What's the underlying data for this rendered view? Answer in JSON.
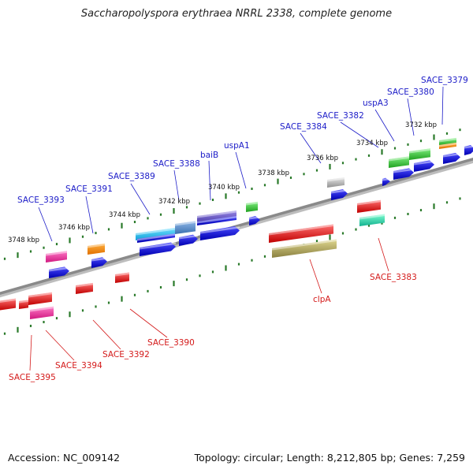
{
  "title": "Saccharopolyspora erythraea NRRL 2338, complete genome",
  "footer": {
    "accession": "Accession: NC_009142",
    "summary": "Topology: circular; Length: 8,212,805 bp; Genes: 7,259"
  },
  "colors": {
    "backbone": "#8a8a8a",
    "forward_label": "#1c1cc8",
    "reverse_label": "#d41a1a",
    "tick": "#2a7a2a"
  },
  "kbp_ticks": [
    "3748 kbp",
    "3746 kbp",
    "3744 kbp",
    "3742 kbp",
    "3740 kbp",
    "3738 kbp",
    "3736 kbp",
    "3734 kbp",
    "3732 kbp"
  ],
  "forward_labels": [
    "SACE_3393",
    "SACE_3391",
    "SACE_3389",
    "SACE_3388",
    "baiB",
    "uspA1",
    "SACE_3384",
    "SACE_3382",
    "uspA3",
    "SACE_3380",
    "SACE_3379"
  ],
  "reverse_labels": [
    "SACE_3395",
    "SACE_3394",
    "SACE_3392",
    "SACE_3390",
    "clpA",
    "SACE_3383"
  ]
}
